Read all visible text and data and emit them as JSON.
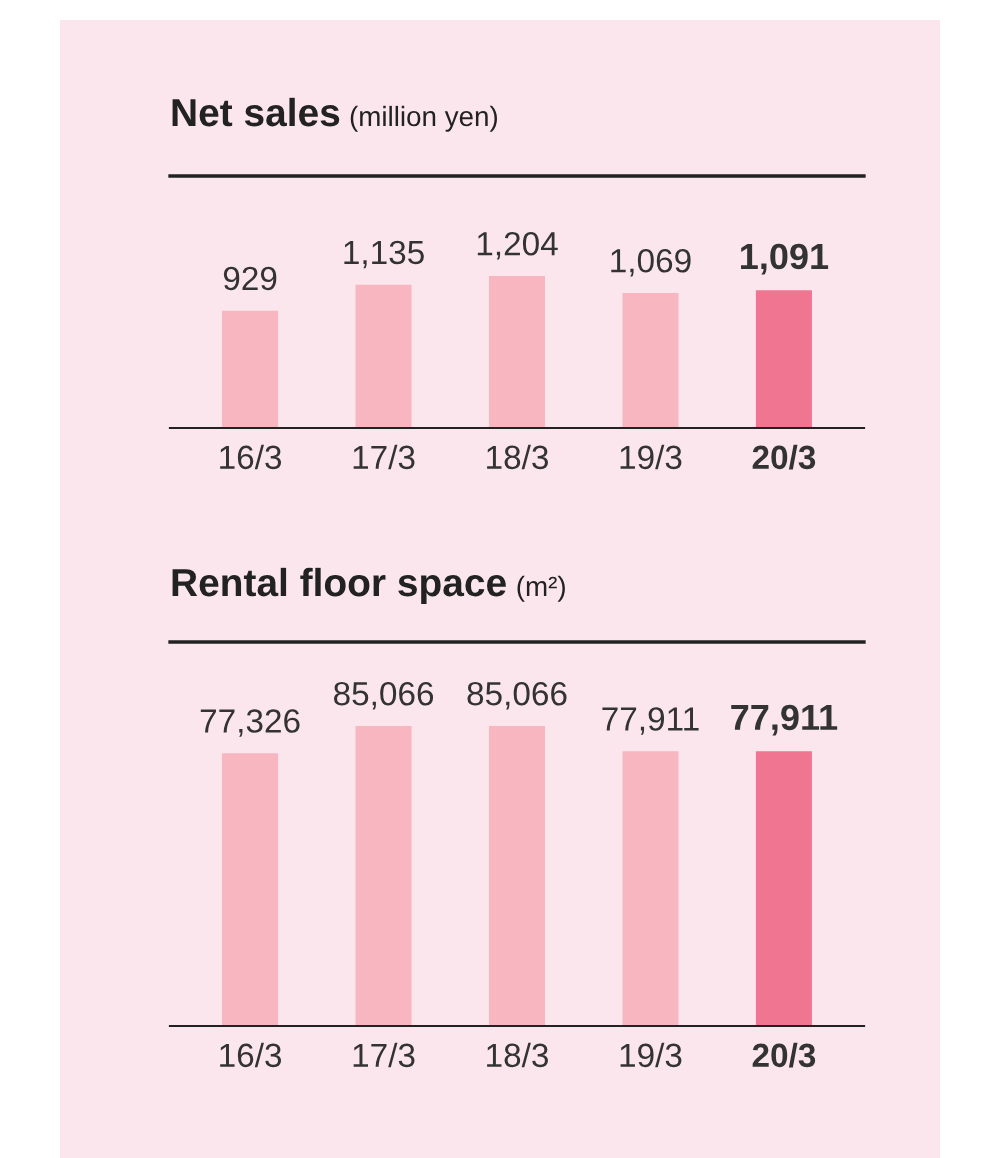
{
  "chart_data": [
    {
      "type": "bar",
      "title": "Net sales",
      "subtitle": "(million yen)",
      "categories": [
        "16/3",
        "17/3",
        "18/3",
        "19/3",
        "20/3"
      ],
      "values": [
        929,
        1135,
        1204,
        1069,
        1091
      ],
      "value_labels": [
        "929",
        "1,135",
        "1,204",
        "1,069",
        "1,091"
      ],
      "colors": [
        "#f7b6c0",
        "#f7b6c0",
        "#f7b6c0",
        "#f7b6c0",
        "#f07591"
      ],
      "grid": false,
      "legend": false
    },
    {
      "type": "bar",
      "title": "Rental floor space",
      "subtitle": "(m²)",
      "categories": [
        "16/3",
        "17/3",
        "18/3",
        "19/3",
        "20/3"
      ],
      "values": [
        77326,
        85066,
        85066,
        77911,
        77911
      ],
      "value_labels": [
        "77,326",
        "85,066",
        "85,066",
        "77,911",
        "77,911"
      ],
      "colors": [
        "#f7b6c0",
        "#f7b6c0",
        "#f7b6c0",
        "#f7b6c0",
        "#f07591"
      ],
      "grid": false,
      "legend": false
    }
  ]
}
